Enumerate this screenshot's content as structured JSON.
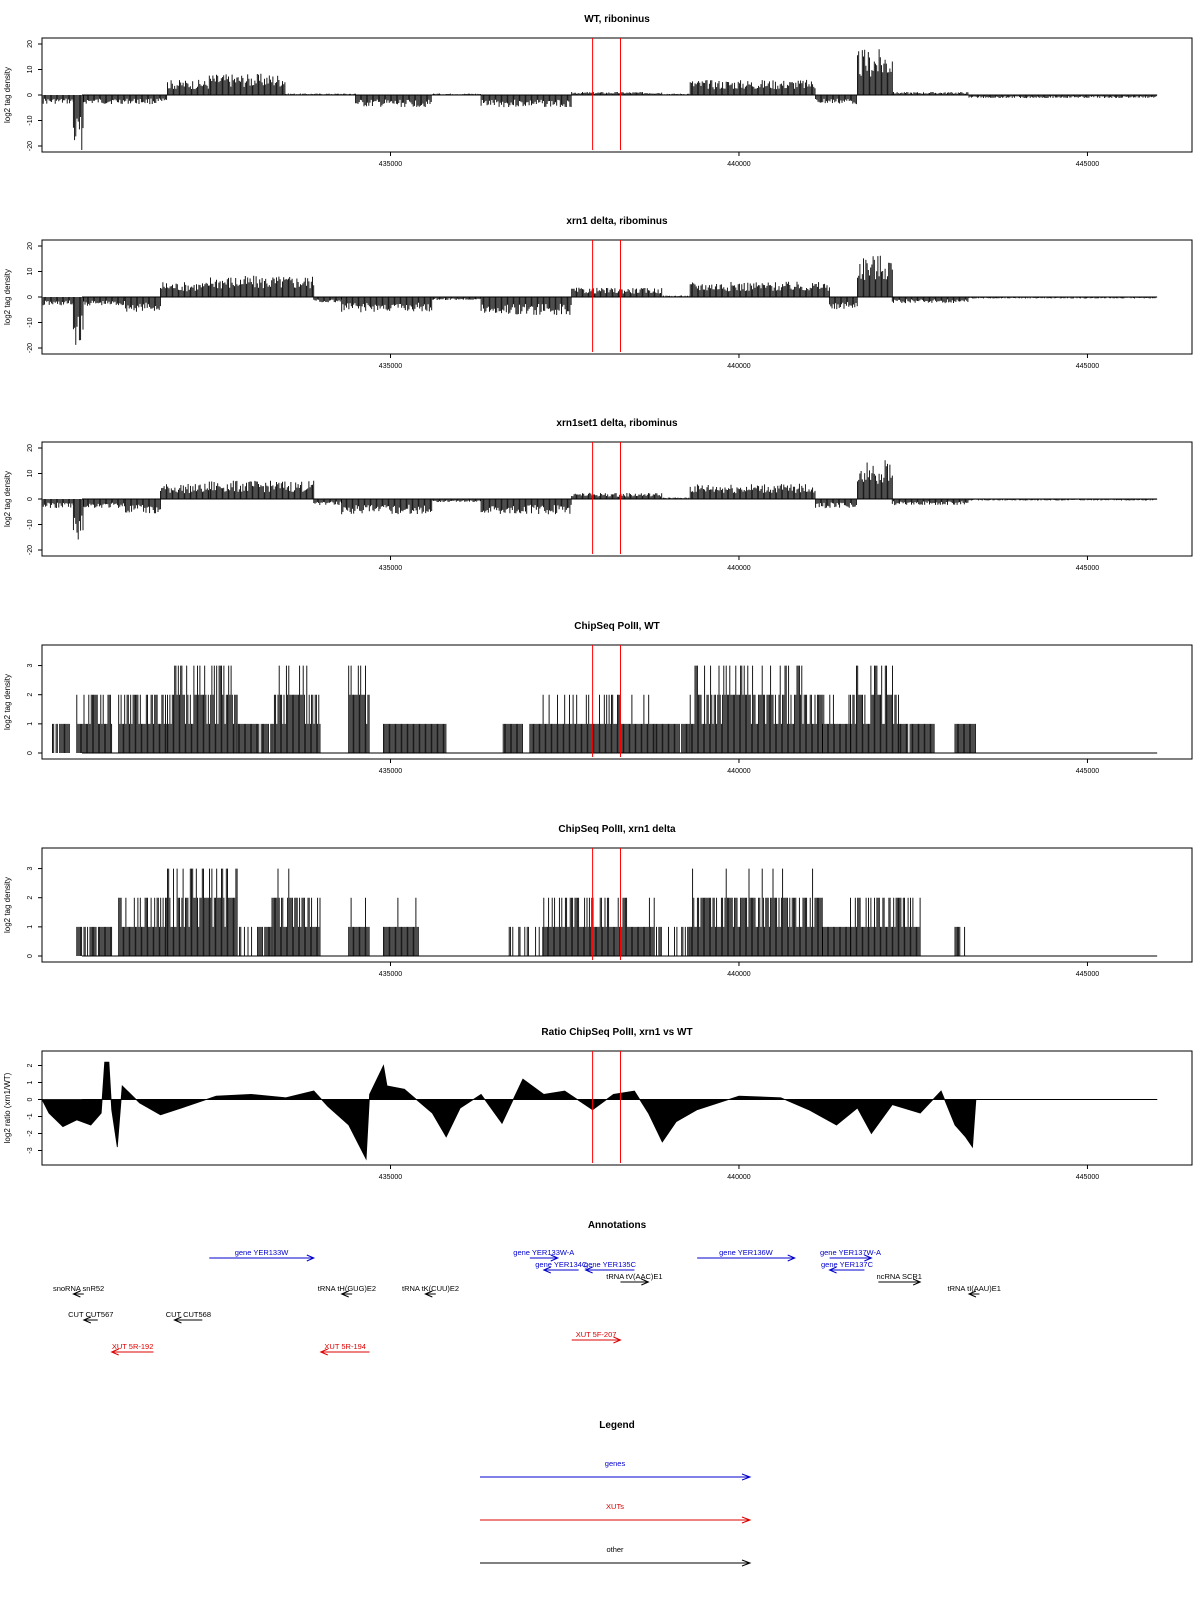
{
  "colors": {
    "genes": "#0000cc",
    "xuts": "#dd0000",
    "other": "#000000",
    "marker": "#ff0000"
  },
  "x_axis": {
    "range": [
      430000,
      446500
    ],
    "ticks": [
      435000,
      440000,
      445000
    ],
    "tick_labels": [
      "435000",
      "440000",
      "445000"
    ]
  },
  "chart_data": [
    {
      "type": "bar",
      "title": "WT, riboninus",
      "ylabel": "log2 tag density",
      "ylim": [
        -20,
        20
      ],
      "yticks": [
        -20,
        -10,
        0,
        10,
        20
      ],
      "ytick_labels": [
        "-20",
        "-10",
        "0",
        "10",
        "20"
      ],
      "marker_positions": [
        437900,
        438300
      ],
      "segments": [
        {
          "x": [
            430000,
            430450
          ],
          "y": -3
        },
        {
          "x": [
            430450,
            430600
          ],
          "y": -18
        },
        {
          "x": [
            430600,
            431800
          ],
          "y": -3
        },
        {
          "x": [
            431800,
            432400
          ],
          "y": 5
        },
        {
          "x": [
            432400,
            433500
          ],
          "y": 7
        },
        {
          "x": [
            433500,
            434500
          ],
          "y": 0.5
        },
        {
          "x": [
            434500,
            435600
          ],
          "y": -4
        },
        {
          "x": [
            435600,
            436300
          ],
          "y": 0.5
        },
        {
          "x": [
            436300,
            437600
          ],
          "y": -4
        },
        {
          "x": [
            437600,
            438900
          ],
          "y": 1
        },
        {
          "x": [
            438900,
            439300
          ],
          "y": 0.5
        },
        {
          "x": [
            439300,
            441100
          ],
          "y": 5
        },
        {
          "x": [
            441100,
            441700
          ],
          "y": -3
        },
        {
          "x": [
            441700,
            442200
          ],
          "y": 15
        },
        {
          "x": [
            442200,
            443300
          ],
          "y": 1
        },
        {
          "x": [
            443300,
            446000
          ],
          "y": -1
        }
      ]
    },
    {
      "type": "bar",
      "title": "xrn1 delta, ribominus",
      "ylabel": "log2 tag density",
      "ylim": [
        -20,
        20
      ],
      "yticks": [
        -20,
        -10,
        0,
        10,
        20
      ],
      "ytick_labels": [
        "-20",
        "-10",
        "0",
        "10",
        "20"
      ],
      "marker_positions": [
        437900,
        438300
      ],
      "segments": [
        {
          "x": [
            430000,
            430450
          ],
          "y": -3
        },
        {
          "x": [
            430450,
            430600
          ],
          "y": -16
        },
        {
          "x": [
            430600,
            431200
          ],
          "y": -3
        },
        {
          "x": [
            431200,
            431700
          ],
          "y": -5
        },
        {
          "x": [
            431700,
            432400
          ],
          "y": 5
        },
        {
          "x": [
            432400,
            433900
          ],
          "y": 7
        },
        {
          "x": [
            433900,
            434300
          ],
          "y": -2
        },
        {
          "x": [
            434300,
            435600
          ],
          "y": -5
        },
        {
          "x": [
            435600,
            436300
          ],
          "y": -1
        },
        {
          "x": [
            436300,
            437600
          ],
          "y": -6
        },
        {
          "x": [
            437600,
            438900
          ],
          "y": 3
        },
        {
          "x": [
            438900,
            439300
          ],
          "y": 0.5
        },
        {
          "x": [
            439300,
            441300
          ],
          "y": 5
        },
        {
          "x": [
            441300,
            441700
          ],
          "y": -4
        },
        {
          "x": [
            441700,
            442200
          ],
          "y": 14
        },
        {
          "x": [
            442200,
            443300
          ],
          "y": -2
        },
        {
          "x": [
            443300,
            446000
          ],
          "y": -0.5
        }
      ]
    },
    {
      "type": "bar",
      "title": "xrn1set1 delta, ribominus",
      "ylabel": "log2 tag density",
      "ylim": [
        -20,
        20
      ],
      "yticks": [
        -20,
        -10,
        0,
        10,
        20
      ],
      "ytick_labels": [
        "-20",
        "-10",
        "0",
        "10",
        "20"
      ],
      "marker_positions": [
        437900,
        438300
      ],
      "segments": [
        {
          "x": [
            430000,
            430450
          ],
          "y": -3
        },
        {
          "x": [
            430450,
            430600
          ],
          "y": -14
        },
        {
          "x": [
            430600,
            431200
          ],
          "y": -3
        },
        {
          "x": [
            431200,
            431700
          ],
          "y": -5
        },
        {
          "x": [
            431700,
            432400
          ],
          "y": 5
        },
        {
          "x": [
            432400,
            433900
          ],
          "y": 6
        },
        {
          "x": [
            433900,
            434300
          ],
          "y": -2
        },
        {
          "x": [
            434300,
            435600
          ],
          "y": -5
        },
        {
          "x": [
            435600,
            436300
          ],
          "y": -1
        },
        {
          "x": [
            436300,
            437600
          ],
          "y": -5
        },
        {
          "x": [
            437600,
            438900
          ],
          "y": 2
        },
        {
          "x": [
            438900,
            439300
          ],
          "y": 0.5
        },
        {
          "x": [
            439300,
            441100
          ],
          "y": 5
        },
        {
          "x": [
            441100,
            441700
          ],
          "y": -3
        },
        {
          "x": [
            441700,
            442200
          ],
          "y": 13
        },
        {
          "x": [
            442200,
            443300
          ],
          "y": -2
        },
        {
          "x": [
            443300,
            446000
          ],
          "y": -0.5
        }
      ]
    },
    {
      "type": "bar",
      "title": "ChipSeq PolII, WT",
      "ylabel": "log2 tag density",
      "ylim": [
        0,
        3.5
      ],
      "yticks": [
        0,
        1,
        2,
        3
      ],
      "ytick_labels": [
        "0",
        "1",
        "2",
        "3"
      ],
      "marker_positions": [
        437900,
        438300
      ],
      "segments": [
        {
          "x": [
            430150,
            430400
          ],
          "y": 1
        },
        {
          "x": [
            430500,
            431000
          ],
          "y": 1.8
        },
        {
          "x": [
            431100,
            431800
          ],
          "y": 2
        },
        {
          "x": [
            431800,
            432800
          ],
          "y": 2.6
        },
        {
          "x": [
            432800,
            433300
          ],
          "y": 1
        },
        {
          "x": [
            433300,
            434000
          ],
          "y": 2.3
        },
        {
          "x": [
            434400,
            434700
          ],
          "y": 2.5
        },
        {
          "x": [
            434900,
            435800
          ],
          "y": 1.2
        },
        {
          "x": [
            436600,
            436900
          ],
          "y": 1
        },
        {
          "x": [
            437000,
            438800
          ],
          "y": 1.4
        },
        {
          "x": [
            438800,
            439300
          ],
          "y": 1
        },
        {
          "x": [
            439300,
            441200
          ],
          "y": 2.4
        },
        {
          "x": [
            441200,
            441600
          ],
          "y": 1.5
        },
        {
          "x": [
            441600,
            442300
          ],
          "y": 2.5
        },
        {
          "x": [
            442300,
            442800
          ],
          "y": 1
        },
        {
          "x": [
            443100,
            443400
          ],
          "y": 1.2
        }
      ]
    },
    {
      "type": "bar",
      "title": "ChipSeq PolII, xrn1 delta",
      "ylabel": "log2 tag density",
      "ylim": [
        0,
        3.5
      ],
      "yticks": [
        0,
        1,
        2,
        3
      ],
      "ytick_labels": [
        "0",
        "1",
        "2",
        "3"
      ],
      "marker_positions": [
        437900,
        438300
      ],
      "segments": [
        {
          "x": [
            430100,
            430500
          ],
          "y": 0.3
        },
        {
          "x": [
            430500,
            431000
          ],
          "y": 1
        },
        {
          "x": [
            431100,
            431800
          ],
          "y": 1.8
        },
        {
          "x": [
            431800,
            432800
          ],
          "y": 2.6
        },
        {
          "x": [
            432800,
            433300
          ],
          "y": 0.6
        },
        {
          "x": [
            433300,
            434000
          ],
          "y": 2.2
        },
        {
          "x": [
            434400,
            434700
          ],
          "y": 1.5
        },
        {
          "x": [
            434900,
            435400
          ],
          "y": 1.3
        },
        {
          "x": [
            436600,
            437200
          ],
          "y": 0.5
        },
        {
          "x": [
            437200,
            438800
          ],
          "y": 1.6
        },
        {
          "x": [
            438800,
            439300
          ],
          "y": 0.6
        },
        {
          "x": [
            439300,
            441200
          ],
          "y": 2.2
        },
        {
          "x": [
            441200,
            441600
          ],
          "y": 1.2
        },
        {
          "x": [
            441600,
            442600
          ],
          "y": 1.8
        },
        {
          "x": [
            443100,
            443400
          ],
          "y": 0.6
        }
      ]
    },
    {
      "type": "area",
      "title": "Ratio ChipSeq PolII, xrn1 vs WT",
      "ylabel": "log2 ratio (xrn1/WT)",
      "ylim": [
        -3.5,
        2.5
      ],
      "yticks": [
        -3,
        -2,
        -1,
        0,
        1,
        2
      ],
      "ytick_labels": [
        "-3",
        "-2",
        "-1",
        "0",
        "1",
        "2"
      ],
      "marker_positions": [
        437900,
        438300
      ],
      "points": [
        {
          "x": 430000,
          "y": 0
        },
        {
          "x": 430100,
          "y": -0.8
        },
        {
          "x": 430300,
          "y": -1.6
        },
        {
          "x": 430500,
          "y": -1.2
        },
        {
          "x": 430700,
          "y": -1.5
        },
        {
          "x": 430850,
          "y": -0.8
        },
        {
          "x": 430900,
          "y": 2.2
        },
        {
          "x": 430960,
          "y": 2.2
        },
        {
          "x": 431000,
          "y": -0.6
        },
        {
          "x": 431080,
          "y": -2.8
        },
        {
          "x": 431150,
          "y": 0.8
        },
        {
          "x": 431400,
          "y": -0.2
        },
        {
          "x": 431700,
          "y": -0.9
        },
        {
          "x": 432000,
          "y": -0.5
        },
        {
          "x": 432500,
          "y": 0.2
        },
        {
          "x": 433000,
          "y": 0.3
        },
        {
          "x": 433500,
          "y": 0.1
        },
        {
          "x": 433900,
          "y": 0.5
        },
        {
          "x": 434100,
          "y": -0.4
        },
        {
          "x": 434400,
          "y": -1.5
        },
        {
          "x": 434650,
          "y": -3.5
        },
        {
          "x": 434700,
          "y": 0.3
        },
        {
          "x": 434900,
          "y": 2
        },
        {
          "x": 434950,
          "y": 0.8
        },
        {
          "x": 435200,
          "y": 0.6
        },
        {
          "x": 435600,
          "y": -0.8
        },
        {
          "x": 435800,
          "y": -2.2
        },
        {
          "x": 436000,
          "y": -0.5
        },
        {
          "x": 436300,
          "y": 0.3
        },
        {
          "x": 436600,
          "y": -1.4
        },
        {
          "x": 436900,
          "y": 1.2
        },
        {
          "x": 437200,
          "y": 0.3
        },
        {
          "x": 437500,
          "y": 0.5
        },
        {
          "x": 437900,
          "y": -0.6
        },
        {
          "x": 438200,
          "y": 0.3
        },
        {
          "x": 438500,
          "y": 0.5
        },
        {
          "x": 438700,
          "y": -0.8
        },
        {
          "x": 438900,
          "y": -2.5
        },
        {
          "x": 439100,
          "y": -1.3
        },
        {
          "x": 439400,
          "y": -0.6
        },
        {
          "x": 440000,
          "y": 0.2
        },
        {
          "x": 440600,
          "y": 0.1
        },
        {
          "x": 441000,
          "y": -0.6
        },
        {
          "x": 441400,
          "y": -1.5
        },
        {
          "x": 441700,
          "y": -0.5
        },
        {
          "x": 441900,
          "y": -2
        },
        {
          "x": 442200,
          "y": -0.3
        },
        {
          "x": 442600,
          "y": -0.8
        },
        {
          "x": 442900,
          "y": 0.5
        },
        {
          "x": 443100,
          "y": -1.5
        },
        {
          "x": 443250,
          "y": -2.2
        },
        {
          "x": 443350,
          "y": -2.8
        },
        {
          "x": 443400,
          "y": 0
        },
        {
          "x": 446000,
          "y": 0
        }
      ]
    }
  ],
  "annotations": {
    "title": "Annotations",
    "features": [
      {
        "label": "gene YER133W",
        "category": "genes",
        "x1": 432400,
        "x2": 433900,
        "strand": "+",
        "row": 0
      },
      {
        "label": "gene YER133W-A",
        "category": "genes",
        "x1": 437000,
        "x2": 437400,
        "strand": "+",
        "row": 0
      },
      {
        "label": "gene YER134C",
        "category": "genes",
        "x1": 437200,
        "x2": 437700,
        "strand": "-",
        "row": 1
      },
      {
        "label": "gene YER135C",
        "category": "genes",
        "x1": 437800,
        "x2": 438500,
        "strand": "-",
        "row": 1
      },
      {
        "label": "gene YER136W",
        "category": "genes",
        "x1": 439400,
        "x2": 440800,
        "strand": "+",
        "row": 0
      },
      {
        "label": "gene YER137W-A",
        "category": "genes",
        "x1": 441300,
        "x2": 441900,
        "strand": "+",
        "row": 0
      },
      {
        "label": "gene YER137C",
        "category": "genes",
        "x1": 441300,
        "x2": 441800,
        "strand": "-",
        "row": 1
      },
      {
        "label": "tRNA tV(AAC)E1",
        "category": "other",
        "x1": 438300,
        "x2": 438700,
        "strand": "+",
        "row": 2
      },
      {
        "label": "ncRNA SCR1",
        "category": "other",
        "x1": 442000,
        "x2": 442600,
        "strand": "+",
        "row": 2
      },
      {
        "label": "snoRNA snR52",
        "category": "other",
        "x1": 430450,
        "x2": 430600,
        "strand": "-",
        "row": 3
      },
      {
        "label": "tRNA tH(GUG)E2",
        "category": "other",
        "x1": 434300,
        "x2": 434450,
        "strand": "-",
        "row": 3
      },
      {
        "label": "tRNA tK(CUU)E2",
        "category": "other",
        "x1": 435500,
        "x2": 435650,
        "strand": "-",
        "row": 3
      },
      {
        "label": "tRNA tI(AAU)E1",
        "category": "other",
        "x1": 443300,
        "x2": 443450,
        "strand": "-",
        "row": 3
      },
      {
        "label": "CUT CUT567",
        "category": "other",
        "x1": 430600,
        "x2": 430800,
        "strand": "-",
        "row": 5
      },
      {
        "label": "CUT CUT568",
        "category": "other",
        "x1": 431900,
        "x2": 432300,
        "strand": "-",
        "row": 5
      },
      {
        "label": "XUT 5F-207",
        "category": "xuts",
        "x1": 437600,
        "x2": 438300,
        "strand": "+",
        "row": 6
      },
      {
        "label": "XUT 5R-192",
        "category": "xuts",
        "x1": 431000,
        "x2": 431600,
        "strand": "-",
        "row": 7
      },
      {
        "label": "XUT 5R-194",
        "category": "xuts",
        "x1": 434000,
        "x2": 434700,
        "strand": "-",
        "row": 7
      }
    ]
  },
  "legend": {
    "title": "Legend",
    "items": [
      {
        "label": "genes",
        "category": "genes"
      },
      {
        "label": "XUTs",
        "category": "xuts"
      },
      {
        "label": "other",
        "category": "other"
      }
    ]
  }
}
